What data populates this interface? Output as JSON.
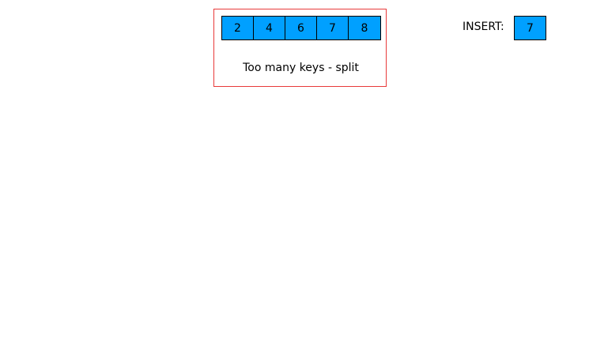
{
  "node": {
    "keys": [
      "2",
      "4",
      "6",
      "7",
      "8"
    ]
  },
  "message": "Too many keys - split",
  "insert": {
    "label": "INSERT:",
    "value": "7"
  },
  "colors": {
    "key_fill": "#00a0ff",
    "highlight_border": "#e83a3a"
  }
}
